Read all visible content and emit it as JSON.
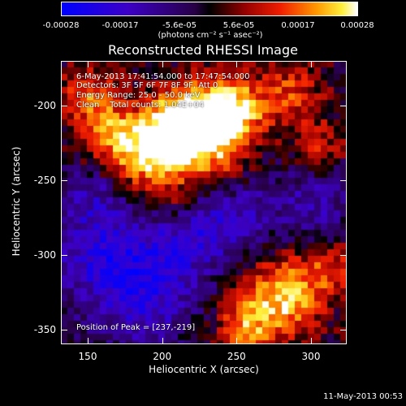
{
  "colorbar": {
    "labels": [
      "-0.00028",
      "-0.00017",
      "-5.6e-05",
      "5.6e-05",
      "0.00017",
      "0.00028"
    ],
    "unit": "(photons cm⁻² s⁻¹ asec⁻²)"
  },
  "title": "Reconstructed RHESSI Image",
  "info": {
    "time": "6-May-2013 17:41:54.000 to 17:47:54.000",
    "detectors": "Detectors: 3F 5F 6F 7F 8F 9F, Att 0",
    "energy": "Energy Range: 25.0 - 50.0 keV",
    "clean": "Clean    Total counts: 1.04E+04",
    "peak": "Position of Peak = [237,-219]"
  },
  "axes": {
    "xlabel": "Heliocentric X (arcsec)",
    "ylabel": "Heliocentric Y (arcsec)",
    "xticks": [
      "150",
      "200",
      "250",
      "300"
    ],
    "yticks": [
      "-200",
      "-250",
      "-300",
      "-350"
    ],
    "xtick_values": [
      150,
      200,
      250,
      300
    ],
    "ytick_values": [
      -200,
      -250,
      -300,
      -350
    ],
    "xlim": [
      132,
      324
    ],
    "ylim": [
      -360,
      -170
    ]
  },
  "footer": "11-May-2013 00:53",
  "chart_data": {
    "type": "heatmap",
    "title": "Reconstructed RHESSI Image",
    "xlabel": "Heliocentric X (arcsec)",
    "ylabel": "Heliocentric Y (arcsec)",
    "xlim": [
      132,
      324
    ],
    "ylim": [
      -360,
      -170
    ],
    "peak": [
      237,
      -219
    ],
    "colorscale_range": [
      -0.00028,
      0.00028
    ],
    "colors": {
      "negative": "#3a00c8",
      "zero": "#000000",
      "mid_positive": "#e02000",
      "high": "#ffffff"
    }
  }
}
